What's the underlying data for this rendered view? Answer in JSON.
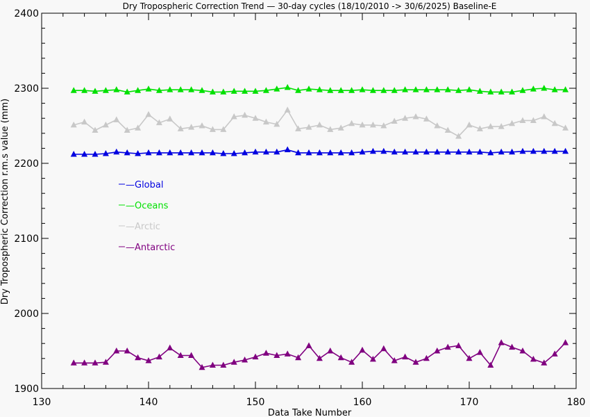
{
  "chart_data": {
    "type": "line",
    "title": "Dry Tropospheric Correction Trend — 30-day cycles (18/10/2010 -> 30/6/2025) Baseline-E",
    "xlabel": "Data Take Number",
    "ylabel": "Dry Tropospheric Correction r.m.s value (mm)",
    "xlim": [
      130,
      180
    ],
    "ylim": [
      1900,
      2400
    ],
    "x_ticks": [
      130,
      140,
      150,
      160,
      170,
      180
    ],
    "y_ticks": [
      1900,
      2000,
      2100,
      2200,
      2300,
      2400
    ],
    "x_tick_labels": [
      "130",
      "140",
      "150",
      "160",
      "170",
      "180"
    ],
    "y_tick_labels": [
      "1900",
      "2000",
      "2100",
      "2200",
      "2300",
      "2400"
    ],
    "legend_placement": "upper-left inside plot",
    "marker": "triangle",
    "x": [
      133,
      134,
      135,
      136,
      137,
      138,
      139,
      140,
      141,
      142,
      143,
      144,
      145,
      146,
      147,
      148,
      149,
      150,
      151,
      152,
      153,
      154,
      155,
      156,
      157,
      158,
      159,
      160,
      161,
      162,
      163,
      164,
      165,
      166,
      167,
      168,
      169,
      170,
      171,
      172,
      173,
      174,
      175,
      176,
      177,
      178,
      179
    ],
    "series": [
      {
        "name": "Global",
        "legend_label": "—Global",
        "color": "#0000e0",
        "values": [
          2212,
          2212,
          2212,
          2213,
          2215,
          2214,
          2213,
          2214,
          2214,
          2214,
          2214,
          2214,
          2214,
          2214,
          2213,
          2213,
          2214,
          2215,
          2215,
          2215,
          2218,
          2214,
          2214,
          2214,
          2214,
          2214,
          2214,
          2215,
          2216,
          2216,
          2215,
          2215,
          2215,
          2215,
          2215,
          2215,
          2215,
          2215,
          2215,
          2214,
          2215,
          2215,
          2216,
          2216,
          2216,
          2216,
          2216
        ]
      },
      {
        "name": "Oceans",
        "legend_label": "—Oceans",
        "color": "#00e000",
        "values": [
          2297,
          2297,
          2296,
          2297,
          2298,
          2295,
          2297,
          2299,
          2297,
          2298,
          2298,
          2298,
          2297,
          2295,
          2295,
          2296,
          2296,
          2296,
          2297,
          2299,
          2301,
          2297,
          2299,
          2298,
          2297,
          2297,
          2297,
          2298,
          2297,
          2297,
          2297,
          2298,
          2298,
          2298,
          2298,
          2298,
          2297,
          2298,
          2296,
          2295,
          2295,
          2295,
          2297,
          2299,
          2300,
          2298,
          2298
        ]
      },
      {
        "name": "Arctic",
        "legend_label": "—Arctic",
        "color": "#c8c8c8",
        "values": [
          2251,
          2255,
          2244,
          2251,
          2258,
          2244,
          2247,
          2265,
          2254,
          2259,
          2246,
          2248,
          2250,
          2245,
          2245,
          2262,
          2264,
          2260,
          2255,
          2252,
          2271,
          2246,
          2248,
          2251,
          2245,
          2247,
          2253,
          2251,
          2251,
          2250,
          2256,
          2260,
          2262,
          2259,
          2250,
          2244,
          2236,
          2251,
          2246,
          2249,
          2249,
          2253,
          2257,
          2257,
          2262,
          2253,
          2247
        ]
      },
      {
        "name": "Antarctic",
        "legend_label": "—Antarctic",
        "color": "#800080",
        "values": [
          1934,
          1934,
          1934,
          1935,
          1950,
          1950,
          1941,
          1937,
          1942,
          1954,
          1944,
          1944,
          1928,
          1931,
          1931,
          1935,
          1938,
          1942,
          1947,
          1944,
          1946,
          1941,
          1957,
          1940,
          1950,
          1941,
          1935,
          1951,
          1939,
          1953,
          1937,
          1942,
          1935,
          1940,
          1950,
          1955,
          1957,
          1940,
          1948,
          1931,
          1961,
          1955,
          1950,
          1939,
          1934,
          1946,
          1961
        ]
      }
    ]
  }
}
